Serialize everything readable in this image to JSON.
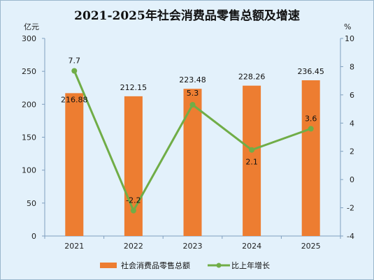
{
  "chart_data": {
    "type": "bar",
    "title": "2021-2025年社会消费品零售总额及增速",
    "categories": [
      "2021",
      "2022",
      "2023",
      "2024",
      "2025"
    ],
    "left_axis": {
      "unit": "亿元",
      "ylim": [
        0,
        300
      ],
      "ticks": [
        0,
        50,
        100,
        150,
        200,
        250,
        300
      ]
    },
    "right_axis": {
      "unit": "%",
      "ylim": [
        -4,
        10
      ],
      "ticks": [
        -4,
        -2,
        0,
        2,
        4,
        6,
        8,
        10
      ]
    },
    "series": [
      {
        "name": "社会消费品零售总额",
        "type": "bar",
        "axis": "left",
        "color": "#ed7d31",
        "values": [
          216.88,
          212.15,
          223.48,
          228.26,
          236.45
        ],
        "labels": [
          "216.88",
          "212.15",
          "223.48",
          "228.26",
          "236.45"
        ]
      },
      {
        "name": "比上年增长",
        "type": "line",
        "axis": "right",
        "color": "#70ad47",
        "values": [
          7.7,
          -2.2,
          5.3,
          2.1,
          3.6
        ],
        "labels": [
          "7.7",
          "-2.2",
          "5.3",
          "2.1",
          "3.6"
        ]
      }
    ],
    "grid": false,
    "legend": "bottom"
  }
}
